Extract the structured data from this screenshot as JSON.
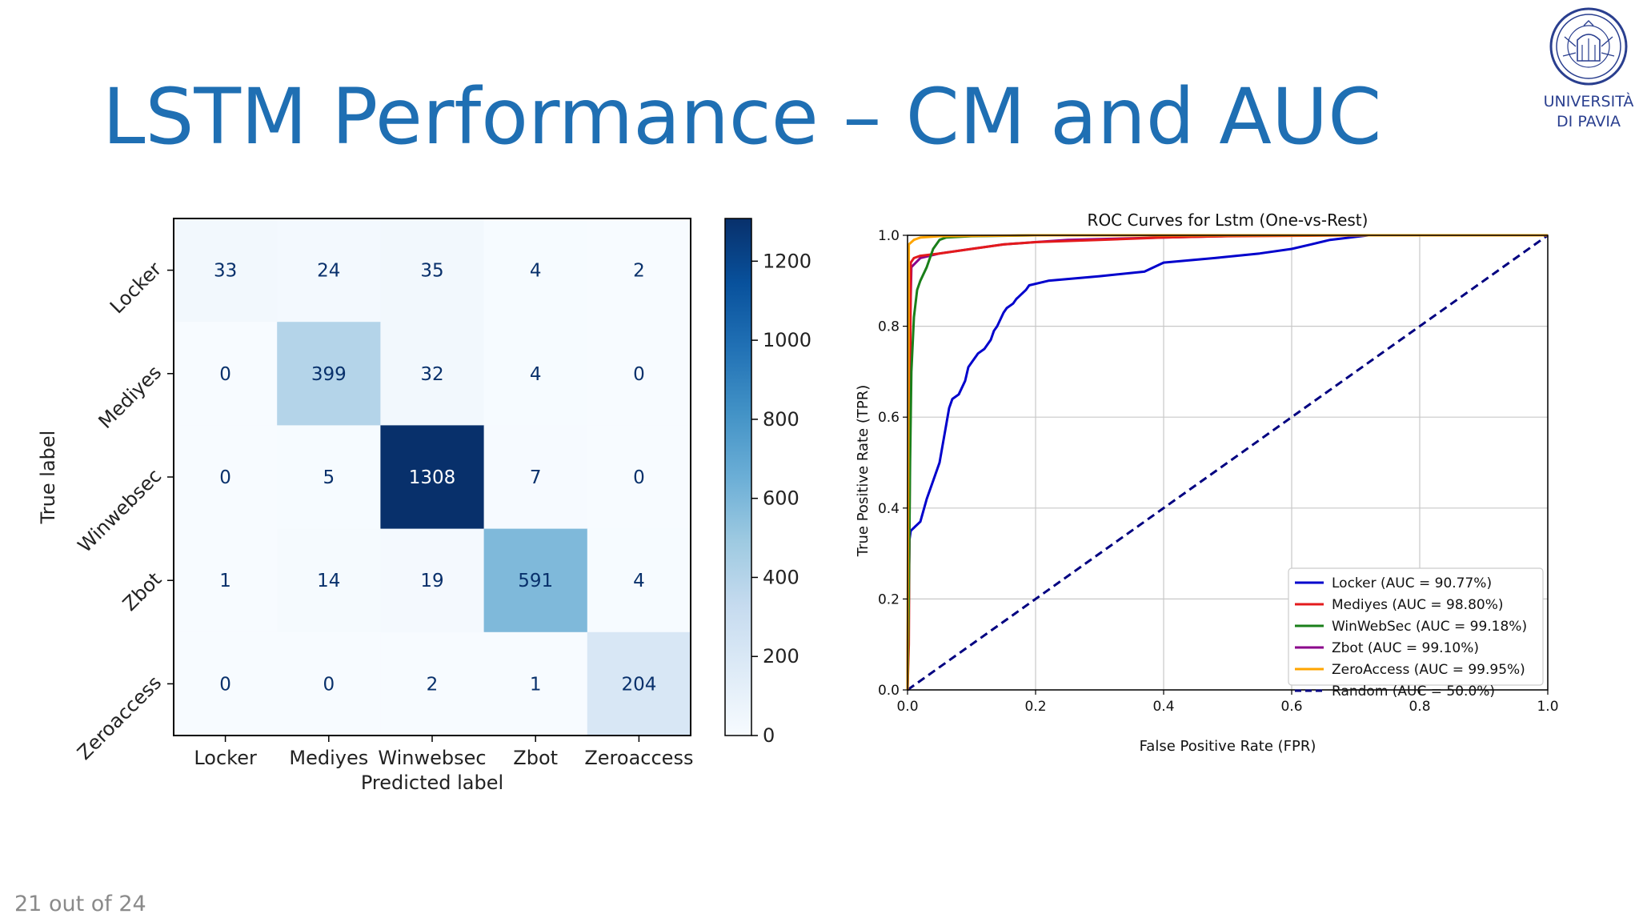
{
  "slide": {
    "title": "LSTM Performance – CM and AUC",
    "page_number": "21 out of 24",
    "logo": {
      "line1": "UNIVERSITÀ",
      "line2": "DI PAVIA",
      "color": "#2a3f8f"
    }
  },
  "colors": {
    "title": "#1f6fb3",
    "heat_low": "#f7fbff",
    "heat_high": "#08306b"
  },
  "chart_data": [
    {
      "type": "heatmap",
      "xlabel": "Predicted label",
      "ylabel": "True label",
      "categories": [
        "Locker",
        "Mediyes",
        "Winwebsec",
        "Zbot",
        "Zeroaccess"
      ],
      "matrix": [
        [
          33,
          24,
          35,
          4,
          2
        ],
        [
          0,
          399,
          32,
          4,
          0
        ],
        [
          0,
          5,
          1308,
          7,
          0
        ],
        [
          1,
          14,
          19,
          591,
          4
        ],
        [
          0,
          0,
          2,
          1,
          204
        ]
      ],
      "colorbar": {
        "min": 0,
        "max": 1308,
        "ticks": [
          0,
          200,
          400,
          600,
          800,
          1000,
          1200
        ],
        "colormap": "Blues"
      }
    },
    {
      "type": "line",
      "title": "ROC Curves for Lstm (One-vs-Rest)",
      "xlabel": "False Positive Rate (FPR)",
      "ylabel": "True Positive Rate (TPR)",
      "xlim": [
        0,
        1
      ],
      "ylim": [
        0,
        1
      ],
      "xticks": [
        "0.0",
        "0.2",
        "0.4",
        "0.6",
        "0.8",
        "1.0"
      ],
      "yticks": [
        "0.0",
        "0.2",
        "0.4",
        "0.6",
        "0.8",
        "1.0"
      ],
      "grid": true,
      "legend_position": "bottom-right",
      "series": [
        {
          "name": "Locker (AUC = 90.77%)",
          "color": "#0000cc",
          "dash": false,
          "points": [
            [
              0,
              0
            ],
            [
              0.003,
              0.33
            ],
            [
              0.005,
              0.35
            ],
            [
              0.02,
              0.37
            ],
            [
              0.03,
              0.42
            ],
            [
              0.04,
              0.46
            ],
            [
              0.05,
              0.5
            ],
            [
              0.055,
              0.54
            ],
            [
              0.06,
              0.58
            ],
            [
              0.065,
              0.62
            ],
            [
              0.07,
              0.64
            ],
            [
              0.08,
              0.65
            ],
            [
              0.09,
              0.68
            ],
            [
              0.095,
              0.71
            ],
            [
              0.1,
              0.72
            ],
            [
              0.11,
              0.74
            ],
            [
              0.12,
              0.75
            ],
            [
              0.13,
              0.77
            ],
            [
              0.135,
              0.79
            ],
            [
              0.14,
              0.8
            ],
            [
              0.15,
              0.83
            ],
            [
              0.155,
              0.84
            ],
            [
              0.165,
              0.85
            ],
            [
              0.17,
              0.86
            ],
            [
              0.185,
              0.88
            ],
            [
              0.19,
              0.89
            ],
            [
              0.22,
              0.9
            ],
            [
              0.3,
              0.91
            ],
            [
              0.37,
              0.92
            ],
            [
              0.4,
              0.94
            ],
            [
              0.48,
              0.95
            ],
            [
              0.55,
              0.96
            ],
            [
              0.6,
              0.97
            ],
            [
              0.63,
              0.98
            ],
            [
              0.66,
              0.99
            ],
            [
              0.72,
              1.0
            ],
            [
              1.0,
              1.0
            ]
          ]
        },
        {
          "name": "Mediyes (AUC = 98.80%)",
          "color": "#e31a1c",
          "dash": false,
          "points": [
            [
              0,
              0
            ],
            [
              0.002,
              0.1
            ],
            [
              0.004,
              0.6
            ],
            [
              0.005,
              0.94
            ],
            [
              0.01,
              0.95
            ],
            [
              0.02,
              0.955
            ],
            [
              0.05,
              0.96
            ],
            [
              0.1,
              0.97
            ],
            [
              0.15,
              0.98
            ],
            [
              0.2,
              0.985
            ],
            [
              0.3,
              0.99
            ],
            [
              0.4,
              0.995
            ],
            [
              0.5,
              0.998
            ],
            [
              0.72,
              1.0
            ],
            [
              1.0,
              1.0
            ]
          ]
        },
        {
          "name": "WinWebSec (AUC = 99.18%)",
          "color": "#1a7f1a",
          "dash": false,
          "points": [
            [
              0,
              0
            ],
            [
              0.002,
              0.2
            ],
            [
              0.004,
              0.5
            ],
            [
              0.006,
              0.7
            ],
            [
              0.01,
              0.82
            ],
            [
              0.015,
              0.88
            ],
            [
              0.02,
              0.9
            ],
            [
              0.03,
              0.93
            ],
            [
              0.04,
              0.97
            ],
            [
              0.05,
              0.99
            ],
            [
              0.06,
              0.995
            ],
            [
              0.1,
              0.998
            ],
            [
              0.2,
              1.0
            ],
            [
              1.0,
              1.0
            ]
          ]
        },
        {
          "name": "Zbot (AUC = 99.10%)",
          "color": "#8b008b",
          "dash": false,
          "points": [
            [
              0,
              0
            ],
            [
              0.002,
              0.5
            ],
            [
              0.004,
              0.8
            ],
            [
              0.006,
              0.93
            ],
            [
              0.02,
              0.95
            ],
            [
              0.05,
              0.96
            ],
            [
              0.1,
              0.97
            ],
            [
              0.15,
              0.98
            ],
            [
              0.2,
              0.985
            ],
            [
              0.25,
              0.99
            ],
            [
              0.4,
              0.995
            ],
            [
              0.55,
              1.0
            ],
            [
              1.0,
              1.0
            ]
          ]
        },
        {
          "name": "ZeroAccess (AUC = 99.95%)",
          "color": "#ffa500",
          "dash": false,
          "points": [
            [
              0,
              0
            ],
            [
              0.002,
              0.98
            ],
            [
              0.01,
              0.99
            ],
            [
              0.02,
              0.995
            ],
            [
              0.05,
              0.998
            ],
            [
              0.2,
              1.0
            ],
            [
              1.0,
              1.0
            ]
          ]
        },
        {
          "name": "Random (AUC = 50.0%)",
          "color": "#000080",
          "dash": true,
          "points": [
            [
              0,
              0
            ],
            [
              1,
              1
            ]
          ]
        }
      ]
    }
  ]
}
